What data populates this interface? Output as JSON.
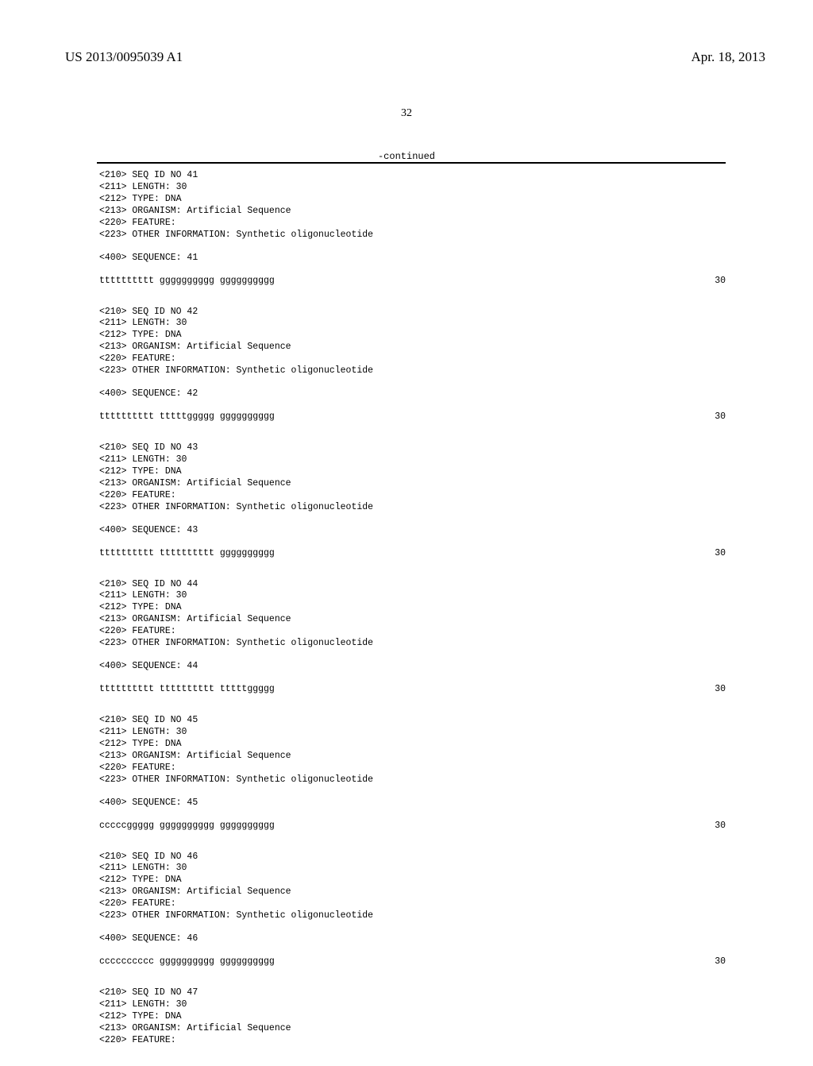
{
  "header": {
    "pubNumber": "US 2013/0095039 A1",
    "date": "Apr. 18, 2013"
  },
  "pageNum": "32",
  "continuedLabel": "-continued",
  "sequences": [
    {
      "meta": "<210> SEQ ID NO 41\n<211> LENGTH: 30\n<212> TYPE: DNA\n<213> ORGANISM: Artificial Sequence\n<220> FEATURE:\n<223> OTHER INFORMATION: Synthetic oligonucleotide",
      "header": "<400> SEQUENCE: 41",
      "seqText": "tttttttttt gggggggggg gggggggggg",
      "count": "30"
    },
    {
      "meta": "<210> SEQ ID NO 42\n<211> LENGTH: 30\n<212> TYPE: DNA\n<213> ORGANISM: Artificial Sequence\n<220> FEATURE:\n<223> OTHER INFORMATION: Synthetic oligonucleotide",
      "header": "<400> SEQUENCE: 42",
      "seqText": "tttttttttt tttttggggg gggggggggg",
      "count": "30"
    },
    {
      "meta": "<210> SEQ ID NO 43\n<211> LENGTH: 30\n<212> TYPE: DNA\n<213> ORGANISM: Artificial Sequence\n<220> FEATURE:\n<223> OTHER INFORMATION: Synthetic oligonucleotide",
      "header": "<400> SEQUENCE: 43",
      "seqText": "tttttttttt tttttttttt gggggggggg",
      "count": "30"
    },
    {
      "meta": "<210> SEQ ID NO 44\n<211> LENGTH: 30\n<212> TYPE: DNA\n<213> ORGANISM: Artificial Sequence\n<220> FEATURE:\n<223> OTHER INFORMATION: Synthetic oligonucleotide",
      "header": "<400> SEQUENCE: 44",
      "seqText": "tttttttttt tttttttttt tttttggggg",
      "count": "30"
    },
    {
      "meta": "<210> SEQ ID NO 45\n<211> LENGTH: 30\n<212> TYPE: DNA\n<213> ORGANISM: Artificial Sequence\n<220> FEATURE:\n<223> OTHER INFORMATION: Synthetic oligonucleotide",
      "header": "<400> SEQUENCE: 45",
      "seqText": "cccccggggg gggggggggg gggggggggg",
      "count": "30"
    },
    {
      "meta": "<210> SEQ ID NO 46\n<211> LENGTH: 30\n<212> TYPE: DNA\n<213> ORGANISM: Artificial Sequence\n<220> FEATURE:\n<223> OTHER INFORMATION: Synthetic oligonucleotide",
      "header": "<400> SEQUENCE: 46",
      "seqText": "cccccccccc gggggggggg gggggggggg",
      "count": "30"
    },
    {
      "meta": "<210> SEQ ID NO 47\n<211> LENGTH: 30\n<212> TYPE: DNA\n<213> ORGANISM: Artificial Sequence\n<220> FEATURE:",
      "header": "",
      "seqText": "",
      "count": ""
    }
  ]
}
